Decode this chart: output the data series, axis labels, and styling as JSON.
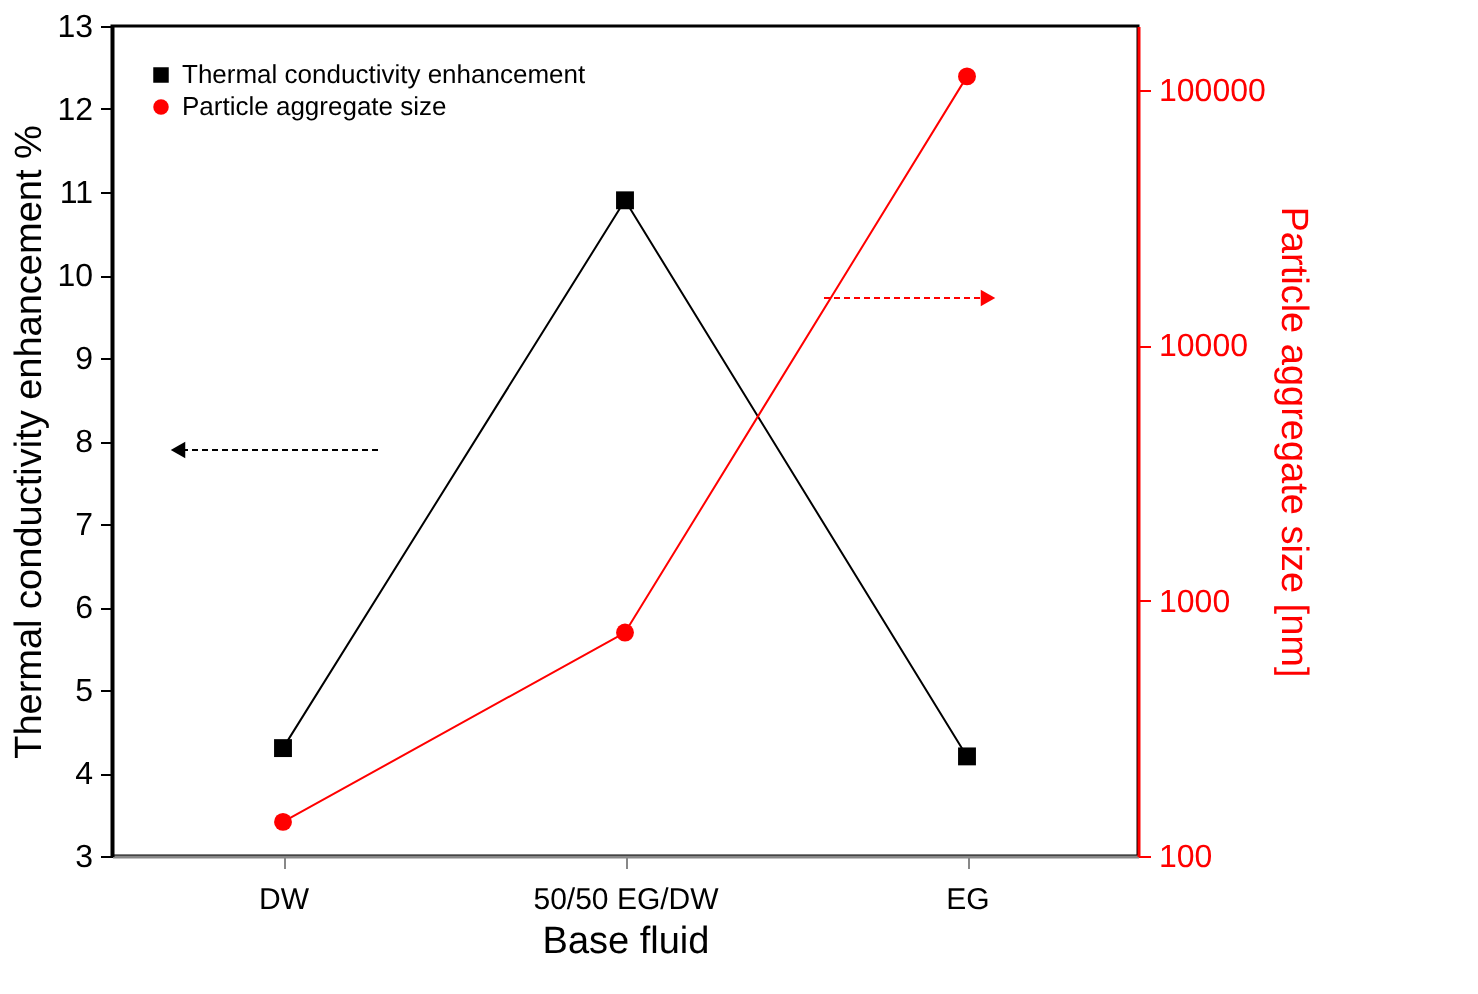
{
  "chart_data": {
    "type": "line",
    "xlabel": "Base fluid",
    "ylabel": "Thermal conductivity enhancement %",
    "y2label": "Particle aggregate size [nm]",
    "categories": [
      "DW",
      "50/50 EG/DW",
      "EG"
    ],
    "series": [
      {
        "name": "Thermal conductivity enhancement",
        "color": "#000000",
        "marker": "square",
        "values": [
          4.3,
          10.9,
          4.2
        ]
      },
      {
        "name": "Particle aggregate size",
        "color": "#ff0000",
        "marker": "circle",
        "axis": "y2",
        "values": [
          136,
          750,
          113000
        ]
      }
    ],
    "ylim": [
      3,
      13
    ],
    "yticks": [
      3,
      4,
      5,
      6,
      7,
      8,
      9,
      10,
      11,
      12,
      13
    ],
    "y2lim": [
      100,
      178000
    ],
    "y2ticks": [
      100,
      1000,
      10000,
      100000
    ],
    "log": "y2",
    "legend": "top left",
    "grid": false
  }
}
